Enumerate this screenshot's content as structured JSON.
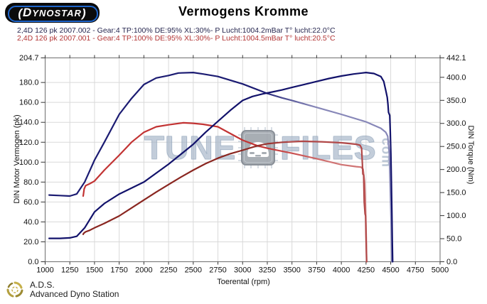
{
  "header": {
    "logo": {
      "paren_left": "(",
      "big_letter": "D",
      "text": "YNOSTAR",
      "paren_right": ")"
    },
    "title": "Vermogens Kromme"
  },
  "legend": [
    {
      "left": "2,4D 126 pk 2007.002 - Gear:4 TP:100% DE:95% XL:30%",
      "right": "- P Lucht:1004.2mBar T° lucht:22.0°C",
      "color": "#26264f"
    },
    {
      "left": "2,4D 126 pk 2007.001 - Gear:4 TP:100% DE:95% XL:30%",
      "right": "- P Lucht:1004.5mBar T° lucht:20.5°C",
      "color": "#b23434"
    }
  ],
  "watermark": {
    "part1": "TUNE",
    "part2": "FILES",
    "part3": "com"
  },
  "footer": {
    "line1": "A.D.S.",
    "line2": "Advanced Dyno Station"
  },
  "colors": {
    "grid": "#d9d9d9",
    "frame": "#6e6e6e",
    "tick": "#333333",
    "label": "#111111",
    "blue_power": "#12126b",
    "blue_torque_start": "#1b1b72",
    "blue_torque_end": "#8787b8",
    "red_power_start": "#8a2620",
    "red_power_end": "#b14848",
    "red_torque_start": "#c23333",
    "red_torque_end": "#d07474"
  },
  "chart_data": {
    "type": "line",
    "title": "Vermogens Kromme",
    "xlabel": "Toerental (rpm)",
    "ylabel_left": "DIN Motor Vermogen (pk)",
    "ylabel_right": "DIN Torque (Nm)",
    "xlim": [
      1000,
      5000
    ],
    "ylim_left": [
      0,
      204.7
    ],
    "ylim_right": [
      0,
      442.1
    ],
    "grid": true,
    "legend_position": "top-left",
    "x_ticks": [
      "1000",
      "1250",
      "1500",
      "1750",
      "2000",
      "2250",
      "2500",
      "2750",
      "3000",
      "3250",
      "3500",
      "3750",
      "4000",
      "4250",
      "4500",
      "4750",
      "5000"
    ],
    "left_ticks": [
      "204.7",
      "180.0",
      "160.0",
      "140.0",
      "120.0",
      "100.0",
      "80.0",
      "60.0",
      "40.0",
      "20.0",
      "0.0"
    ],
    "right_ticks": [
      "442.1",
      "400.0",
      "350.0",
      "300.0",
      "250.0",
      "200.0",
      "150.0",
      "100.0",
      "50.0",
      "0.0"
    ],
    "series": [
      {
        "name": "run-2007-001-torque-Nm",
        "axis": "right",
        "paint": "red_torque",
        "points": [
          [
            1385,
            142.5
          ],
          [
            1390,
            150
          ],
          [
            1395,
            158
          ],
          [
            1410,
            165
          ],
          [
            1450,
            169
          ],
          [
            1500,
            175
          ],
          [
            1600,
            198.7
          ],
          [
            1750,
            231.1
          ],
          [
            1875,
            259.2
          ],
          [
            2000,
            280.8
          ],
          [
            2125,
            292.7
          ],
          [
            2250,
            297.0
          ],
          [
            2400,
            301.3
          ],
          [
            2500,
            300.2
          ],
          [
            2600,
            298.0
          ],
          [
            2750,
            292.7
          ],
          [
            3000,
            263.5
          ],
          [
            3150,
            251.6
          ],
          [
            3250,
            246.2
          ],
          [
            3500,
            235.4
          ],
          [
            3750,
            223.5
          ],
          [
            4000,
            210.6
          ],
          [
            4150,
            206.3
          ],
          [
            4200,
            205.2
          ],
          [
            4220,
            200.9
          ],
          [
            4235,
            172.8
          ],
          [
            4245,
            118.8
          ],
          [
            4252,
            54.0
          ],
          [
            4256,
            0
          ]
        ]
      },
      {
        "name": "run-2007-001-power-pk",
        "axis": "left",
        "paint": "red_power",
        "points": [
          [
            1385,
            27.5
          ],
          [
            1390,
            28.5
          ],
          [
            1410,
            30
          ],
          [
            1450,
            31.5
          ],
          [
            1500,
            34
          ],
          [
            1600,
            38.5
          ],
          [
            1750,
            46
          ],
          [
            1875,
            54
          ],
          [
            2000,
            62
          ],
          [
            2125,
            70
          ],
          [
            2250,
            77.5
          ],
          [
            2375,
            85
          ],
          [
            2500,
            92
          ],
          [
            2625,
            98.5
          ],
          [
            2750,
            104
          ],
          [
            2875,
            108.5
          ],
          [
            3000,
            112
          ],
          [
            3150,
            116.5
          ],
          [
            3250,
            118.5
          ],
          [
            3400,
            120
          ],
          [
            3600,
            121
          ],
          [
            3800,
            120.5
          ],
          [
            4000,
            119.5
          ],
          [
            4100,
            118.5
          ],
          [
            4150,
            118
          ],
          [
            4190,
            117
          ],
          [
            4205,
            114
          ],
          [
            4212,
            100
          ],
          [
            4218,
            88
          ],
          [
            4226,
            87
          ],
          [
            4232,
            60
          ],
          [
            4240,
            48
          ],
          [
            4246,
            46
          ],
          [
            4250,
            25
          ],
          [
            4256,
            0
          ]
        ]
      },
      {
        "name": "run-2007-002-torque-Nm",
        "axis": "right",
        "paint": "blue_torque",
        "points": [
          [
            1040,
            144.7
          ],
          [
            1150,
            143.6
          ],
          [
            1250,
            142.5
          ],
          [
            1320,
            146.9
          ],
          [
            1400,
            172.8
          ],
          [
            1500,
            220.3
          ],
          [
            1600,
            259.2
          ],
          [
            1750,
            319.6
          ],
          [
            1875,
            354.2
          ],
          [
            2000,
            384.4
          ],
          [
            2125,
            398.5
          ],
          [
            2250,
            403.9
          ],
          [
            2350,
            409.3
          ],
          [
            2500,
            410.4
          ],
          [
            2600,
            407.1
          ],
          [
            2750,
            401.7
          ],
          [
            3000,
            385.5
          ],
          [
            3250,
            365.0
          ],
          [
            3400,
            355.3
          ],
          [
            3500,
            349.9
          ],
          [
            3750,
            334.8
          ],
          [
            4000,
            319.6
          ],
          [
            4250,
            303.4
          ],
          [
            4400,
            289.4
          ],
          [
            4450,
            280.8
          ],
          [
            4470,
            272.1
          ],
          [
            4485,
            237.6
          ],
          [
            4495,
            162.0
          ],
          [
            4505,
            75.6
          ],
          [
            4510,
            0
          ]
        ]
      },
      {
        "name": "run-2007-002-power-pk",
        "axis": "left",
        "paint": "blue_power",
        "points": [
          [
            1040,
            23.5
          ],
          [
            1150,
            23.5
          ],
          [
            1250,
            24
          ],
          [
            1320,
            25.5
          ],
          [
            1400,
            34
          ],
          [
            1450,
            42
          ],
          [
            1500,
            50
          ],
          [
            1600,
            58.5
          ],
          [
            1750,
            68
          ],
          [
            2000,
            80
          ],
          [
            2250,
            98
          ],
          [
            2375,
            108
          ],
          [
            2500,
            118
          ],
          [
            2625,
            130
          ],
          [
            2750,
            141
          ],
          [
            2875,
            152
          ],
          [
            3000,
            162
          ],
          [
            3100,
            166
          ],
          [
            3200,
            168.5
          ],
          [
            3300,
            170.5
          ],
          [
            3400,
            172.5
          ],
          [
            3500,
            175
          ],
          [
            3625,
            178
          ],
          [
            3750,
            181
          ],
          [
            3875,
            184
          ],
          [
            4000,
            186.5
          ],
          [
            4125,
            188.5
          ],
          [
            4250,
            190
          ],
          [
            4330,
            189
          ],
          [
            4400,
            186
          ],
          [
            4430,
            181
          ],
          [
            4450,
            172
          ],
          [
            4465,
            165
          ],
          [
            4472,
            158
          ],
          [
            4478,
            150
          ],
          [
            4490,
            147
          ],
          [
            4496,
            130
          ],
          [
            4502,
            108
          ],
          [
            4507,
            80
          ],
          [
            4512,
            50
          ],
          [
            4516,
            20
          ],
          [
            4520,
            0
          ]
        ]
      }
    ]
  }
}
